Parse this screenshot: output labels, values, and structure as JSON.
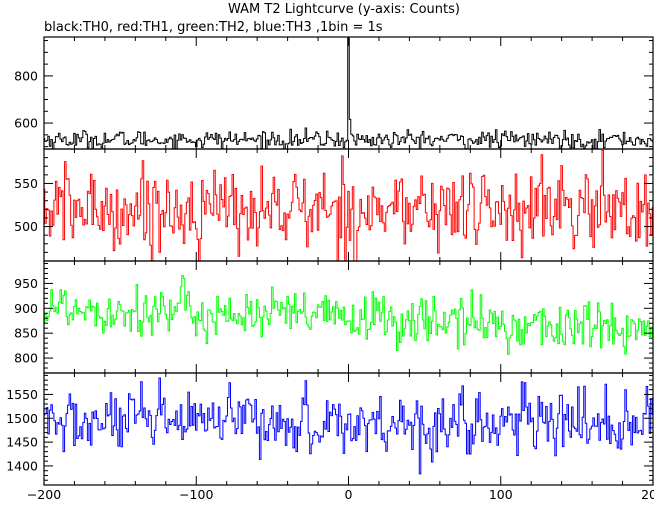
{
  "chart_data": {
    "type": "line",
    "title": "WAM T2 Lightcurve (y-axis: Counts)",
    "subtitle": "black:TH0, red:TH1, green:TH2, blue:TH3 ,1bin = 1s",
    "x": {
      "min": -200,
      "max": 200,
      "step": 1,
      "ticks": [
        -200,
        -100,
        0,
        100,
        200
      ],
      "tick_labels": [
        "−200",
        "−100",
        "0",
        "100",
        "200"
      ]
    },
    "panels": [
      {
        "series": "TH0",
        "color": "#000000",
        "ylim": [
          490,
          965
        ],
        "yticks": [
          600,
          800
        ],
        "ytick_labels": [
          "600",
          "800"
        ],
        "minor_yticks": [
          500,
          550,
          650,
          700,
          750,
          850,
          900,
          950
        ],
        "baseline": 530,
        "noise": 22,
        "trend": 0,
        "spike": {
          "x": 0,
          "value": 960
        }
      },
      {
        "series": "TH1",
        "color": "#ff0000",
        "ylim": [
          460,
          590
        ],
        "yticks": [
          500,
          550
        ],
        "ytick_labels": [
          "500",
          "550"
        ],
        "minor_yticks": [
          470,
          480,
          490,
          510,
          520,
          530,
          540,
          560,
          570,
          580
        ],
        "baseline": 520,
        "noise": 28,
        "trend": 0
      },
      {
        "series": "TH2",
        "color": "#00ff00",
        "ylim": [
          770,
          995
        ],
        "yticks": [
          800,
          850,
          900,
          950
        ],
        "ytick_labels": [
          "800",
          "850",
          "900",
          "950"
        ],
        "minor_yticks": [
          780,
          790,
          810,
          820,
          830,
          840,
          860,
          870,
          880,
          890,
          910,
          920,
          930,
          940,
          960,
          970,
          980,
          990
        ],
        "baseline": 880,
        "noise": 30,
        "trend": -40
      },
      {
        "series": "TH3",
        "color": "#0000ff",
        "ylim": [
          1360,
          1595
        ],
        "yticks": [
          1400,
          1450,
          1500,
          1550
        ],
        "ytick_labels": [
          "1400",
          "1450",
          "1500",
          "1550"
        ],
        "minor_yticks": [
          1370,
          1380,
          1390,
          1410,
          1420,
          1430,
          1440,
          1460,
          1470,
          1480,
          1490,
          1510,
          1520,
          1530,
          1540,
          1560,
          1570,
          1580,
          1590
        ],
        "baseline": 1490,
        "noise": 38,
        "trend": 0
      }
    ]
  }
}
